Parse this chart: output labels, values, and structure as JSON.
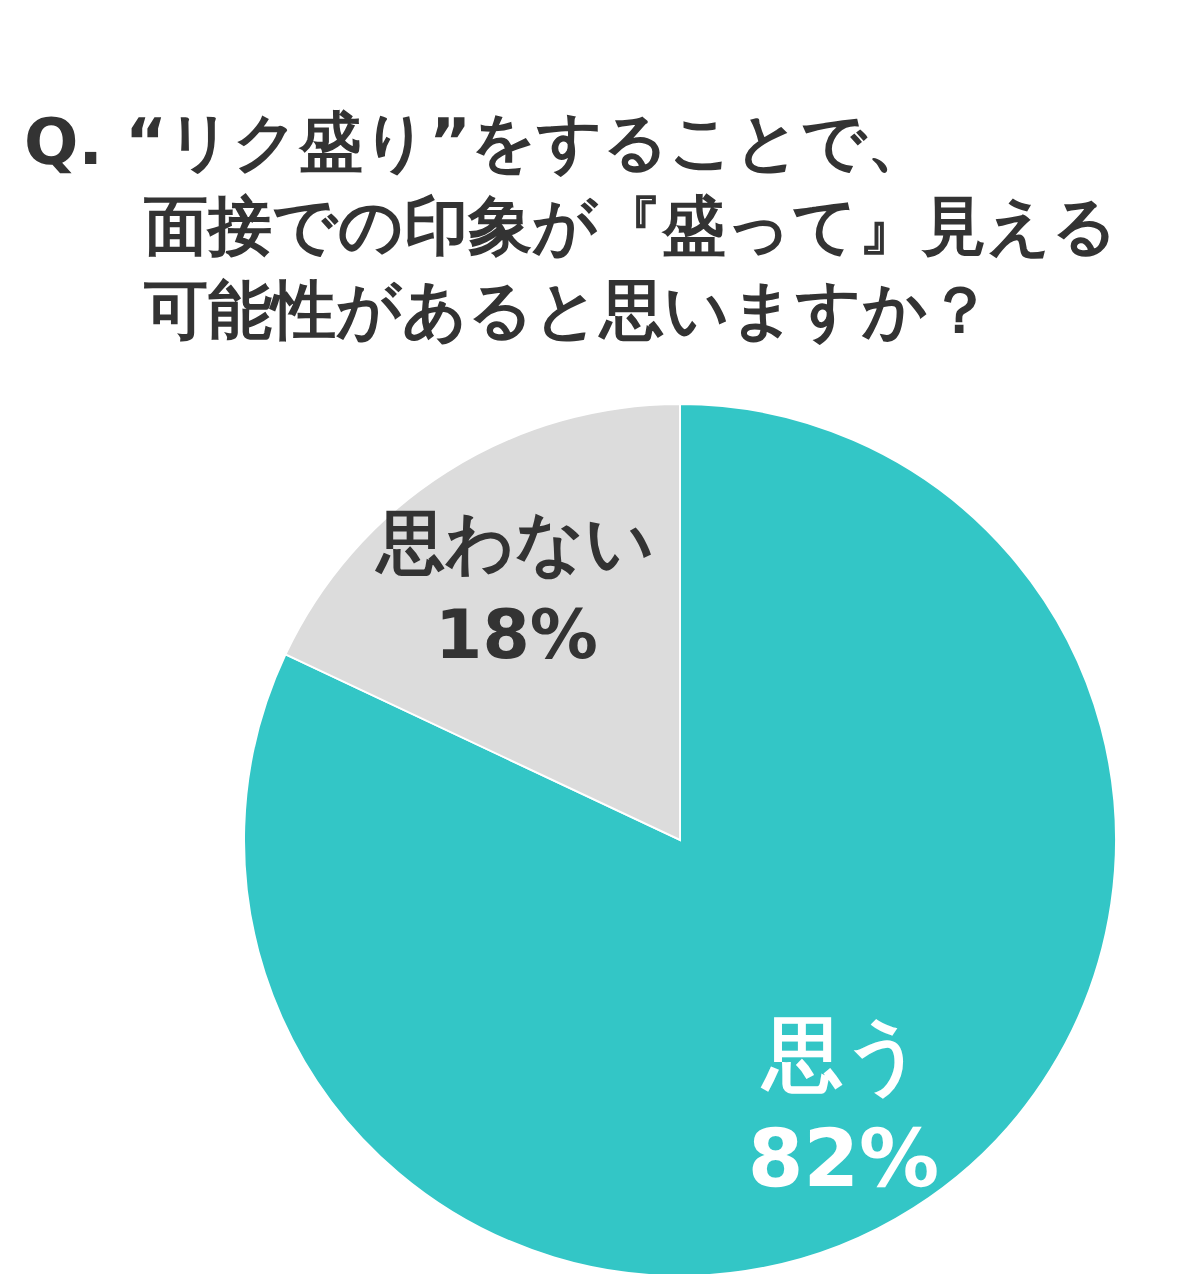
{
  "chart_data": {
    "type": "pie",
    "title": "Q. “リク盛り”をすることで、面接での印象が『盛って』見える可能性があると思いますか？",
    "categories": [
      "思う",
      "思わない"
    ],
    "values": [
      82,
      18
    ],
    "colors": [
      "#33c6c6",
      "#dcdcdc"
    ],
    "value_labels": [
      "82%",
      "18%"
    ],
    "legend": false
  }
}
